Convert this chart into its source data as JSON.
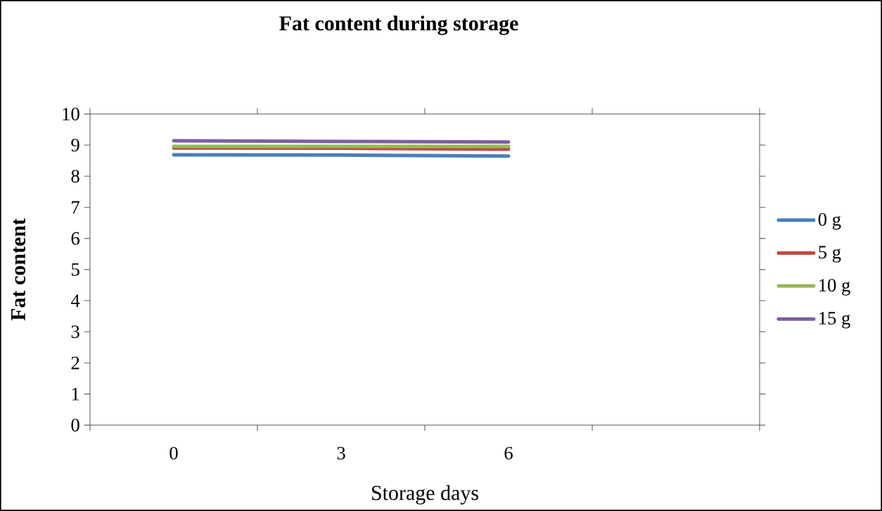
{
  "chart_data": {
    "type": "line",
    "title": "Fat content during storage",
    "xlabel": "Storage days",
    "ylabel": "Fat content",
    "categories": [
      "0",
      "3",
      "6",
      null
    ],
    "series": [
      {
        "name": "0 g",
        "color": "#4a7ebb",
        "values": [
          8.69,
          8.68,
          8.65,
          null
        ]
      },
      {
        "name": "5 g",
        "color": "#be4b48",
        "values": [
          8.91,
          8.9,
          8.87,
          null
        ]
      },
      {
        "name": "10 g",
        "color": "#98b954",
        "values": [
          8.96,
          8.96,
          8.96,
          null
        ]
      },
      {
        "name": "15 g",
        "color": "#7d60a0",
        "values": [
          9.14,
          9.12,
          9.1,
          null
        ]
      }
    ],
    "ylim": [
      0,
      10
    ],
    "yticks": [
      0,
      1,
      2,
      3,
      4,
      5,
      6,
      7,
      8,
      9,
      10
    ],
    "grid": false,
    "legend": "right",
    "marker": "none",
    "line_style": "solid"
  }
}
